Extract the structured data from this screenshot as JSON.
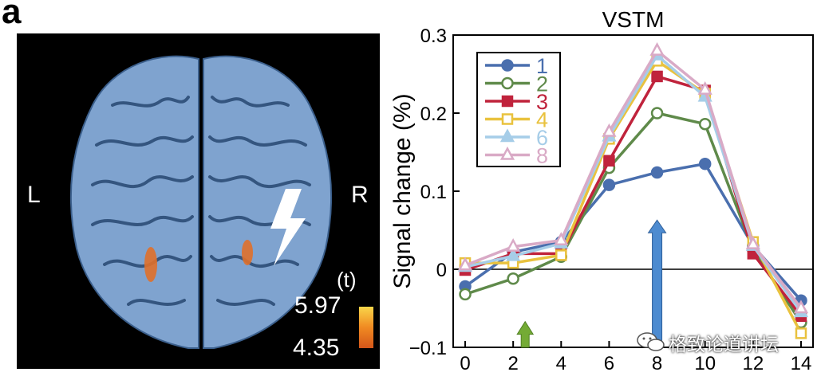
{
  "figure": {
    "panel_letter": "a",
    "left_label": "L",
    "right_label": "R",
    "colorbar_label": "(t)",
    "colorbar_max": "5.97",
    "colorbar_min": "4.35",
    "watermark": "格致论道讲坛",
    "colors": {
      "brain": "#7fa3cf",
      "activation": "#e0702a",
      "bolt": "#ffffff",
      "background": "#000000"
    }
  },
  "chart_data": {
    "type": "line",
    "title": "VSTM",
    "xlabel": "",
    "ylabel": "Signal change (%)",
    "x": [
      0,
      2,
      4,
      6,
      8,
      10,
      12,
      14
    ],
    "xlim": [
      -0.5,
      14.5
    ],
    "ylim": [
      -0.1,
      0.3
    ],
    "xticks": [
      "0",
      "2",
      "4",
      "6",
      "8",
      "10",
      "12",
      "14"
    ],
    "yticks": [
      "−0.1",
      "0",
      "0.1",
      "0.2",
      "0.3"
    ],
    "legend_position": "top-left",
    "series": [
      {
        "name": "1",
        "color": "#4a6fae",
        "marker": "circle-filled",
        "values": [
          -0.022,
          0.022,
          0.035,
          0.108,
          0.124,
          0.135,
          0.03,
          -0.04
        ]
      },
      {
        "name": "2",
        "color": "#5f8a4a",
        "marker": "circle-open",
        "values": [
          -0.032,
          -0.012,
          0.016,
          0.13,
          0.2,
          0.186,
          0.025,
          -0.068
        ]
      },
      {
        "name": "3",
        "color": "#c0233c",
        "marker": "square-filled",
        "values": [
          -0.001,
          0.02,
          0.02,
          0.139,
          0.247,
          0.229,
          0.02,
          -0.06
        ]
      },
      {
        "name": "4",
        "color": "#e9c23e",
        "marker": "square-open",
        "values": [
          0.008,
          0.008,
          0.018,
          0.167,
          0.267,
          0.225,
          0.035,
          -0.082
        ]
      },
      {
        "name": "6",
        "color": "#a6cde8",
        "marker": "triangle-filled",
        "values": [
          0.003,
          0.017,
          0.033,
          0.17,
          0.274,
          0.221,
          0.03,
          -0.055
        ]
      },
      {
        "name": "8",
        "color": "#d9aac6",
        "marker": "triangle-open",
        "values": [
          0.005,
          0.029,
          0.037,
          0.176,
          0.28,
          0.23,
          0.032,
          -0.05
        ]
      }
    ],
    "annotations": [
      {
        "type": "arrow",
        "x": 2.5,
        "color": "#74ab35"
      },
      {
        "type": "arrow",
        "x": 8,
        "color": "#4d8bd0"
      }
    ]
  }
}
